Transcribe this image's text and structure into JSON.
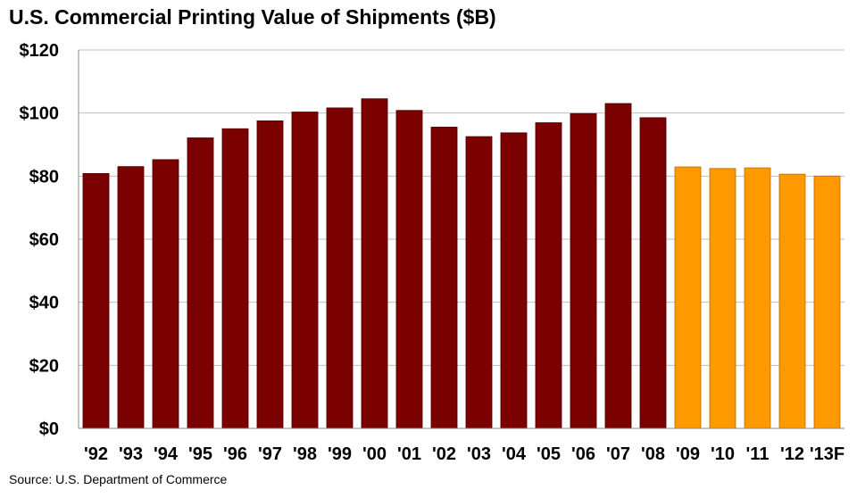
{
  "chart_data": {
    "type": "bar",
    "title": "U.S. Commercial Printing Value of Shipments ($B)",
    "source": "Source: U.S. Department of Commerce",
    "categories": [
      "'92",
      "'93",
      "'94",
      "'95",
      "'96",
      "'97",
      "'98",
      "'99",
      "'00",
      "'01",
      "'02",
      "'03",
      "'04",
      "'05",
      "'06",
      "'07",
      "'08",
      "'09",
      "'10",
      "'11",
      "'12",
      "'13F"
    ],
    "values": [
      80.8,
      83.0,
      85.2,
      92.1,
      95.0,
      97.5,
      100.3,
      101.6,
      104.5,
      100.8,
      95.5,
      92.5,
      93.7,
      96.9,
      99.8,
      103.0,
      98.5,
      82.9,
      82.4,
      82.6,
      80.6,
      80.0
    ],
    "colors": {
      "historical": "#7b0000",
      "recent": "#ff9900",
      "recent_border": "#c87800",
      "grid": "#bfbfbf"
    },
    "recent_start_index": 17,
    "y_ticks": [
      "$0",
      "$20",
      "$40",
      "$60",
      "$80",
      "$100",
      "$120"
    ],
    "ylim": [
      0,
      120
    ],
    "grid": true,
    "legend": "none"
  }
}
